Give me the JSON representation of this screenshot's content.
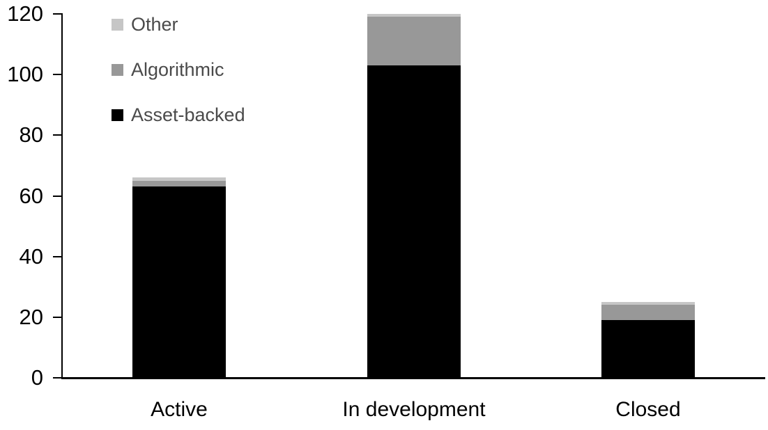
{
  "chart_data": {
    "type": "bar",
    "stacked": true,
    "title": "",
    "xlabel": "",
    "ylabel": "",
    "categories": [
      "Active",
      "In development",
      "Closed"
    ],
    "series": [
      {
        "name": "Asset-backed",
        "color": "#000000",
        "values": [
          63,
          103,
          19
        ]
      },
      {
        "name": "Algorithmic",
        "color": "#989898",
        "values": [
          2,
          16,
          5
        ]
      },
      {
        "name": "Other",
        "color": "#C6C6C6",
        "values": [
          1,
          1,
          1
        ]
      }
    ],
    "stack_totals": [
      66,
      120,
      25
    ],
    "ylim": [
      0,
      120
    ],
    "yticks": [
      0,
      20,
      40,
      60,
      80,
      100,
      120
    ],
    "grid": false,
    "legend_position": "top-left",
    "legend_order_top_to_bottom": [
      "Other",
      "Algorithmic",
      "Asset-backed"
    ]
  },
  "legend": {
    "items": [
      {
        "label": "Other",
        "color": "#C6C6C6"
      },
      {
        "label": "Algorithmic",
        "color": "#989898"
      },
      {
        "label": "Asset-backed",
        "color": "#000000"
      }
    ]
  },
  "colors": {
    "background": "#FFFFFF",
    "axis": "#000000",
    "tick_label_text": "#000000",
    "category_label_text": "#000000",
    "legend_text": "#4A4A4A"
  }
}
